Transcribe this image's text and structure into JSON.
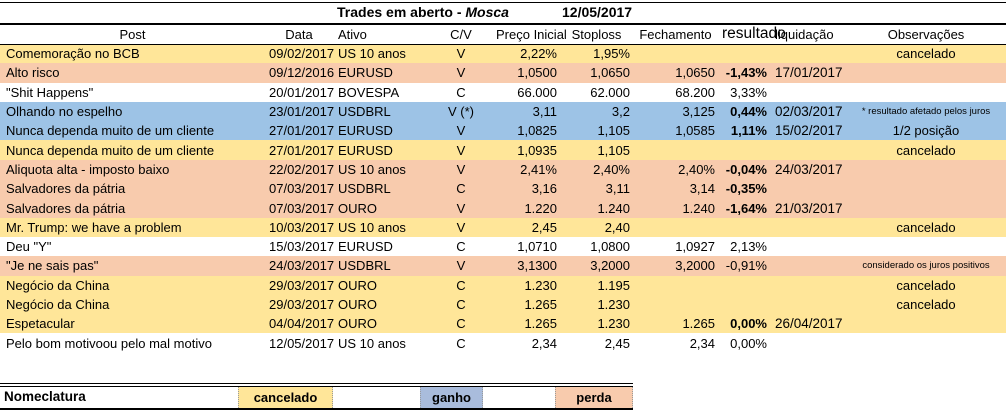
{
  "title": {
    "main": "Trades em aberto -",
    "emphasis": "Mosca",
    "date": "12/05/2017"
  },
  "colors": {
    "row_yellow": "#FFE699",
    "row_orange": "#F8CBAD",
    "row_blue": "#9DC3E6",
    "row_white": "#FFFFFF",
    "legend_ganho_blue": "#A9BCDC"
  },
  "table": {
    "headers": {
      "post": "Post",
      "data": "Data",
      "ativo": "Ativo",
      "cv": "C/V",
      "preco": "Preço Inicial",
      "stoploss": "Stoploss",
      "fechamento": "Fechamento",
      "resultado": "resultado",
      "liquidacao": "liquidação",
      "observacoes": "Observações"
    },
    "rows": [
      {
        "post": "Comemoração no BCB",
        "data": "09/02/2017",
        "ativo": "US 10 anos",
        "cv": "V",
        "preco": "2,22%",
        "stoploss": "1,95%",
        "fechamento": "",
        "resultado": "",
        "resultado_bold": false,
        "liquidacao": "",
        "obs": "cancelado",
        "obs_small": false,
        "color": "yellow"
      },
      {
        "post": "Alto risco",
        "data": "09/12/2016",
        "ativo": "EURUSD",
        "cv": "V",
        "preco": "1,0500",
        "stoploss": "1,0650",
        "fechamento": "1,0650",
        "resultado": "-1,43%",
        "resultado_bold": true,
        "liquidacao": "17/01/2017",
        "obs": "",
        "obs_small": false,
        "color": "orange"
      },
      {
        "post": "\"Shit Happens\"",
        "data": "20/01/2017",
        "ativo": "BOVESPA",
        "cv": "C",
        "preco": "66.000",
        "stoploss": "62.000",
        "fechamento": "68.200",
        "resultado": "3,33%",
        "resultado_bold": false,
        "liquidacao": "",
        "obs": "",
        "obs_small": false,
        "color": "white"
      },
      {
        "post": "Olhando no espelho",
        "data": "23/01/2017",
        "ativo": "USDBRL",
        "cv": "V (*)",
        "preco": "3,11",
        "stoploss": "3,2",
        "fechamento": "3,125",
        "resultado": "0,44%",
        "resultado_bold": true,
        "liquidacao": "02/03/2017",
        "obs": "* resultado afetado pelos juros",
        "obs_small": true,
        "color": "blue"
      },
      {
        "post": "Nunca dependa muito de um cliente",
        "data": "27/01/2017",
        "ativo": "EURUSD",
        "cv": "V",
        "preco": "1,0825",
        "stoploss": "1,105",
        "fechamento": "1,0585",
        "resultado": "1,11%",
        "resultado_bold": true,
        "liquidacao": "15/02/2017",
        "obs": "1/2 posição",
        "obs_small": false,
        "color": "blue"
      },
      {
        "post": "Nunca dependa muito de um cliente",
        "data": "27/01/2017",
        "ativo": "EURUSD",
        "cv": "V",
        "preco": "1,0935",
        "stoploss": "1,105",
        "fechamento": "",
        "resultado": "",
        "resultado_bold": false,
        "liquidacao": "",
        "obs": "cancelado",
        "obs_small": false,
        "color": "yellow"
      },
      {
        "post": "Aliquota alta - imposto baixo",
        "data": "22/02/2017",
        "ativo": "US 10 anos",
        "cv": "V",
        "preco": "2,41%",
        "stoploss": "2,40%",
        "fechamento": "2,40%",
        "resultado": "-0,04%",
        "resultado_bold": true,
        "liquidacao": "24/03/2017",
        "obs": "",
        "obs_small": false,
        "color": "orange"
      },
      {
        "post": "Salvadores da pátria",
        "data": "07/03/2017",
        "ativo": "USDBRL",
        "cv": "C",
        "preco": "3,16",
        "stoploss": "3,11",
        "fechamento": "3,14",
        "resultado": "-0,35%",
        "resultado_bold": true,
        "liquidacao": "",
        "obs": "",
        "obs_small": false,
        "color": "orange"
      },
      {
        "post": "Salvadores da pátria",
        "data": "07/03/2017",
        "ativo": "OURO",
        "cv": "V",
        "preco": "1.220",
        "stoploss": "1.240",
        "fechamento": "1.240",
        "resultado": "-1,64%",
        "resultado_bold": true,
        "liquidacao": "21/03/2017",
        "obs": "",
        "obs_small": false,
        "color": "orange"
      },
      {
        "post": "Mr. Trump: we have a problem",
        "data": "10/03/2017",
        "ativo": "US 10 anos",
        "cv": "V",
        "preco": "2,45",
        "stoploss": "2,40",
        "fechamento": "",
        "resultado": "",
        "resultado_bold": false,
        "liquidacao": "",
        "obs": "cancelado",
        "obs_small": false,
        "color": "yellow"
      },
      {
        "post": "Deu \"Y\"",
        "data": "15/03/2017",
        "ativo": "EURUSD",
        "cv": "C",
        "preco": "1,0710",
        "stoploss": "1,0800",
        "fechamento": "1,0927",
        "resultado": "2,13%",
        "resultado_bold": false,
        "liquidacao": "",
        "obs": "",
        "obs_small": false,
        "color": "white"
      },
      {
        "post": "\"Je ne sais pas\"",
        "data": "24/03/2017",
        "ativo": "USDBRL",
        "cv": "V",
        "preco": "3,1300",
        "stoploss": "3,2000",
        "fechamento": "3,2000",
        "resultado": "-0,91%",
        "resultado_bold": false,
        "liquidacao": "",
        "obs": "considerado os juros positivos",
        "obs_small": true,
        "color": "orange"
      },
      {
        "post": "Negócio da China",
        "data": "29/03/2017",
        "ativo": "OURO",
        "cv": "C",
        "preco": "1.230",
        "stoploss": "1.195",
        "fechamento": "",
        "resultado": "",
        "resultado_bold": false,
        "liquidacao": "",
        "obs": "cancelado",
        "obs_small": false,
        "color": "yellow"
      },
      {
        "post": "Negócio da China",
        "data": "29/03/2017",
        "ativo": "OURO",
        "cv": "C",
        "preco": "1.265",
        "stoploss": "1.230",
        "fechamento": "",
        "resultado": "",
        "resultado_bold": false,
        "liquidacao": "",
        "obs": "cancelado",
        "obs_small": false,
        "color": "yellow"
      },
      {
        "post": "Espetacular",
        "data": "04/04/2017",
        "ativo": "OURO",
        "cv": "C",
        "preco": "1.265",
        "stoploss": "1.230",
        "fechamento": "1.265",
        "resultado": "0,00%",
        "resultado_bold": true,
        "liquidacao": "26/04/2017",
        "obs": "",
        "obs_small": false,
        "color": "yellow"
      },
      {
        "post": "Pelo bom motivoou pelo mal motivo",
        "data": "12/05/2017",
        "ativo": "US 10 anos",
        "cv": "C",
        "preco": "2,34",
        "stoploss": "2,45",
        "fechamento": "2,34",
        "resultado": "0,00%",
        "resultado_bold": false,
        "liquidacao": "",
        "obs": "",
        "obs_small": false,
        "color": "white"
      }
    ]
  },
  "legend": {
    "label": "Nomeclatura",
    "items": [
      {
        "key": "cancelado",
        "label": "cancelado",
        "color": "#FFE699"
      },
      {
        "key": "ganho",
        "label": "ganho",
        "color": "#A9BCDC"
      },
      {
        "key": "perda",
        "label": "perda",
        "color": "#F8CBAD"
      }
    ]
  }
}
